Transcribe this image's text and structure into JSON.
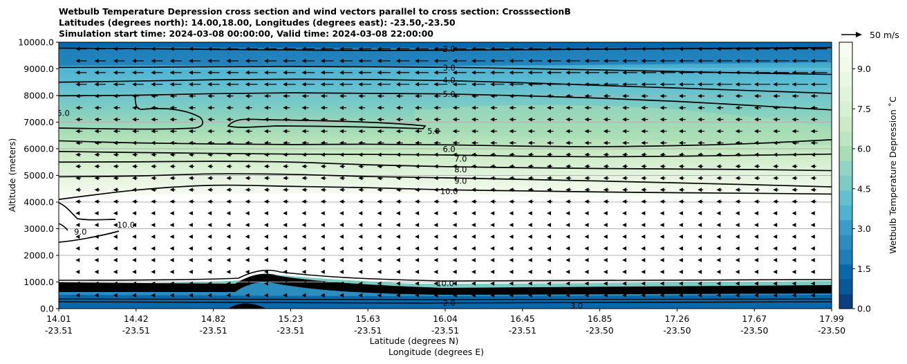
{
  "chart_data": {
    "type": "heatmap",
    "title_lines": [
      "Wetbulb Temperature Depression cross section and wind vectors parallel to cross section: CrosssectionB",
      "Latitudes (degrees north): 14.00,18.00, Longitudes (degrees east): -23.50,-23.50",
      "Simulation start time: 2024-03-08 00:00:00, Valid time: 2024-03-08 22:00:00"
    ],
    "ylabel": "Altitude (meters)",
    "xlabel_lat": "Latitude (degrees N)",
    "xlabel_lon": "Longitude (degrees E)",
    "ylim": [
      0,
      10000
    ],
    "y_ticks": [
      {
        "value": 0,
        "label": "0.0"
      },
      {
        "value": 1000,
        "label": "1000.0"
      },
      {
        "value": 2000,
        "label": "2000.0"
      },
      {
        "value": 3000,
        "label": "3000.0"
      },
      {
        "value": 4000,
        "label": "4000.0"
      },
      {
        "value": 5000,
        "label": "5000.0"
      },
      {
        "value": 6000,
        "label": "6000.0"
      },
      {
        "value": 7000,
        "label": "7000.0"
      },
      {
        "value": 8000,
        "label": "8000.0"
      },
      {
        "value": 9000,
        "label": "9000.0"
      },
      {
        "value": 10000,
        "label": "10000.0"
      }
    ],
    "x_ticks": [
      {
        "lat": "14.01",
        "lon": "-23.51",
        "frac": 0.0
      },
      {
        "lat": "14.42",
        "lon": "-23.51",
        "frac": 0.1
      },
      {
        "lat": "14.82",
        "lon": "-23.51",
        "frac": 0.2
      },
      {
        "lat": "15.23",
        "lon": "-23.51",
        "frac": 0.3
      },
      {
        "lat": "15.63",
        "lon": "-23.51",
        "frac": 0.4
      },
      {
        "lat": "16.04",
        "lon": "-23.51",
        "frac": 0.5
      },
      {
        "lat": "16.45",
        "lon": "-23.51",
        "frac": 0.6
      },
      {
        "lat": "16.85",
        "lon": "-23.50",
        "frac": 0.7
      },
      {
        "lat": "17.26",
        "lon": "-23.50",
        "frac": 0.8
      },
      {
        "lat": "17.67",
        "lon": "-23.50",
        "frac": 0.9
      },
      {
        "lat": "17.99",
        "lon": "-23.50",
        "frac": 1.0
      }
    ],
    "colorbar": {
      "label": "Wetbulb Temperature Depression ˚C",
      "range": [
        0,
        10
      ],
      "ticks": [
        {
          "value": 0.0,
          "label": "0.0"
        },
        {
          "value": 1.5,
          "label": "1.5"
        },
        {
          "value": 3.0,
          "label": "3.0"
        },
        {
          "value": 4.5,
          "label": "4.5"
        },
        {
          "value": 6.0,
          "label": "6.0"
        },
        {
          "value": 7.5,
          "label": "7.5"
        },
        {
          "value": 9.0,
          "label": "9.0"
        }
      ],
      "colors": [
        "#084081",
        "#08589e",
        "#0868ac",
        "#1d7eba",
        "#2b8cbe",
        "#3a9cc8",
        "#4eb3d3",
        "#63c0d0",
        "#7bccc4",
        "#92d5c6",
        "#a8ddb5",
        "#bde5c0",
        "#ccebc5",
        "#d8f0d3",
        "#e0f3db",
        "#eaf7e4",
        "#f2faec",
        "#f7fcf0"
      ]
    },
    "wind_key": {
      "label": "50 m/s",
      "speed_ms": 50
    },
    "contour_labels": [
      {
        "text": "2.0",
        "x_frac": 0.505,
        "alt": 9750
      },
      {
        "text": "3.0",
        "x_frac": 0.505,
        "alt": 9050
      },
      {
        "text": "4.0",
        "x_frac": 0.505,
        "alt": 8580
      },
      {
        "text": "5.0",
        "x_frac": 0.505,
        "alt": 8070
      },
      {
        "text": "6.0",
        "x_frac": 0.505,
        "alt": 6000
      },
      {
        "text": "7.0",
        "x_frac": 0.52,
        "alt": 5640
      },
      {
        "text": "8.0",
        "x_frac": 0.52,
        "alt": 5230
      },
      {
        "text": "9.0",
        "x_frac": 0.52,
        "alt": 4800
      },
      {
        "text": "10.0",
        "x_frac": 0.505,
        "alt": 4420
      },
      {
        "text": "5.0",
        "x_frac": 0.006,
        "alt": 7350
      },
      {
        "text": "5.0",
        "x_frac": 0.485,
        "alt": 6680
      },
      {
        "text": "10.0",
        "x_frac": 0.087,
        "alt": 3150
      },
      {
        "text": "9.0",
        "x_frac": 0.028,
        "alt": 2900
      },
      {
        "text": "10.0",
        "x_frac": 0.5,
        "alt": 960
      },
      {
        "text": "2.0",
        "x_frac": 0.505,
        "alt": 220
      },
      {
        "text": "3.0",
        "x_frac": 0.67,
        "alt": 120
      }
    ],
    "isolines": [
      {
        "level": 2.0,
        "alt": [
          9780,
          9760,
          9730,
          9710,
          9690,
          9700,
          9720,
          9740,
          9760,
          9780,
          9800
        ]
      },
      {
        "level": 3.0,
        "alt": [
          9050,
          9060,
          9080,
          9090,
          9080,
          9060,
          9010,
          8960,
          8900,
          8840,
          8790
        ]
      },
      {
        "level": 4.0,
        "alt": [
          8500,
          8540,
          8590,
          8610,
          8600,
          8560,
          8480,
          8380,
          8280,
          8180,
          8080
        ]
      },
      {
        "level": 5.0,
        "alt": [
          7990,
          8010,
          8070,
          8100,
          8080,
          8060,
          7990,
          7900,
          7780,
          7620,
          7460
        ]
      },
      {
        "level": 6.0,
        "alt": [
          6300,
          6220,
          6180,
          6160,
          6170,
          6150,
          6100,
          6080,
          6120,
          6200,
          6340
        ]
      },
      {
        "level": 7.0,
        "alt": [
          5900,
          5860,
          5830,
          5800,
          5790,
          5770,
          5720,
          5700,
          5720,
          5760,
          5800
        ]
      },
      {
        "level": 8.0,
        "alt": [
          5500,
          5510,
          5530,
          5500,
          5400,
          5330,
          5290,
          5260,
          5240,
          5220,
          5180
        ]
      },
      {
        "level": 9.0,
        "alt": [
          4950,
          4980,
          5060,
          5040,
          4960,
          4910,
          4850,
          4790,
          4720,
          4650,
          4570
        ]
      },
      {
        "level": 10.0,
        "alt": [
          4100,
          4450,
          4630,
          4590,
          4540,
          4460,
          4420,
          4380,
          4350,
          4330,
          4300
        ]
      }
    ]
  }
}
